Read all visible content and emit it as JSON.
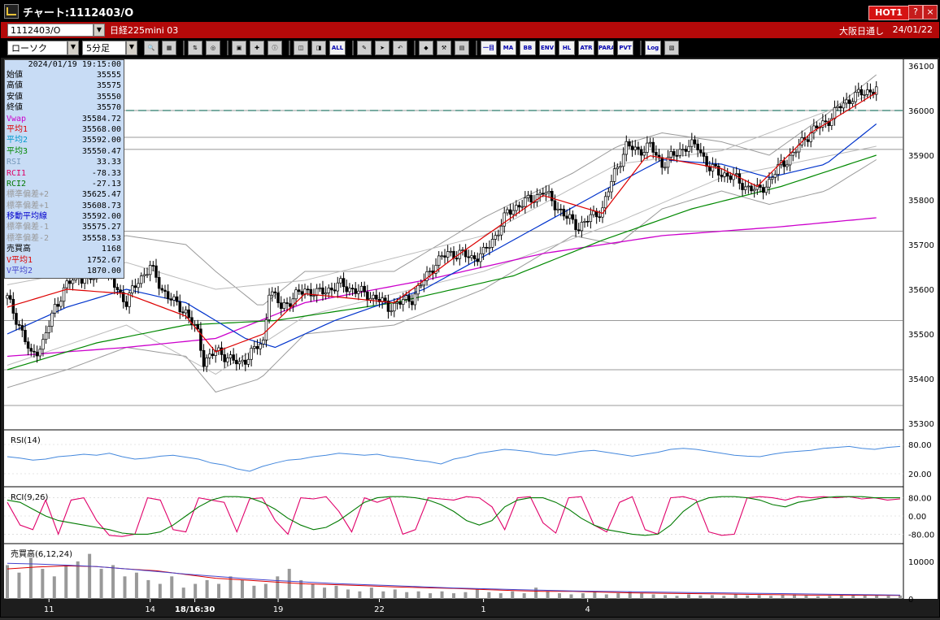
{
  "window": {
    "title": "チャート:1112403/O",
    "hot_badge": "HOT1",
    "help_button": "?",
    "close_button": "×"
  },
  "infobar": {
    "code": "1112403/O",
    "instrument": "日経225mini 03",
    "session": "大阪日通し",
    "date": "24/01/22"
  },
  "toolbar": {
    "chart_type": "ローソク",
    "interval": "5分足",
    "icons": [
      "zoom-icon",
      "grid-icon",
      "buy-sell-icon",
      "search-chart-icon",
      "chart-settings-icon",
      "order-icon",
      "info-icon",
      "single-icon",
      "dual-icon"
    ],
    "text_buttons": [
      "ALL"
    ],
    "icons2": [
      "pen-icon",
      "cursor-icon",
      "undo-icon",
      "palette-icon",
      "tool-icon",
      "color-icon"
    ],
    "indicator_buttons": [
      "一目",
      "MA",
      "BB",
      "ENV",
      "HL",
      "ATR",
      "PARA",
      "PVT",
      "Log"
    ],
    "last_icon": "layout-icon"
  },
  "info_panel": {
    "timestamp": "2024/01/19  19:15:00",
    "rows": [
      {
        "label": "始値",
        "value": "35555",
        "color": "#000000"
      },
      {
        "label": "高値",
        "value": "35575",
        "color": "#000000"
      },
      {
        "label": "安値",
        "value": "35550",
        "color": "#000000"
      },
      {
        "label": "終値",
        "value": "35570",
        "color": "#000000"
      },
      {
        "label": "Vwap",
        "value": "35584.72",
        "color": "#cc00cc"
      },
      {
        "label": "平均1",
        "value": "35568.00",
        "color": "#dd0000"
      },
      {
        "label": "平均2",
        "value": "35592.00",
        "color": "#0099cc"
      },
      {
        "label": "平均3",
        "value": "35550.47",
        "color": "#008800"
      },
      {
        "label": "RSI",
        "value": "33.33",
        "color": "#7799bb"
      },
      {
        "label": "RCI1",
        "value": "-78.33",
        "color": "#dd0066"
      },
      {
        "label": "RCI2",
        "value": "-27.13",
        "color": "#007700"
      },
      {
        "label": "標準偏差+2",
        "value": "35625.47",
        "color": "#999999"
      },
      {
        "label": "標準偏差+1",
        "value": "35608.73",
        "color": "#999999"
      },
      {
        "label": "移動平均線",
        "value": "35592.00",
        "color": "#0000cc"
      },
      {
        "label": "標準偏差-1",
        "value": "35575.27",
        "color": "#999999"
      },
      {
        "label": "標準偏差-2",
        "value": "35558.53",
        "color": "#999999"
      },
      {
        "label": "売買高",
        "value": "1168",
        "color": "#000000"
      },
      {
        "label": "V平均1",
        "value": "1752.67",
        "color": "#dd0000"
      },
      {
        "label": "V平均2",
        "value": "1870.00",
        "color": "#4444cc"
      }
    ]
  },
  "chart_data": [
    {
      "type": "candlestick",
      "panel": "price",
      "ylim": [
        35300,
        36100
      ],
      "yticks": [
        35300,
        35400,
        35500,
        35600,
        35700,
        35800,
        35900,
        36000,
        36100
      ],
      "anchors": [
        [
          0,
          35580
        ],
        [
          4,
          35520
        ],
        [
          8,
          35450
        ],
        [
          12,
          35480
        ],
        [
          16,
          35560
        ],
        [
          20,
          35610
        ],
        [
          24,
          35630
        ],
        [
          28,
          35620
        ],
        [
          32,
          35650
        ],
        [
          36,
          35610
        ],
        [
          40,
          35570
        ],
        [
          44,
          35620
        ],
        [
          48,
          35650
        ],
        [
          52,
          35600
        ],
        [
          56,
          35570
        ],
        [
          60,
          35550
        ],
        [
          64,
          35500
        ],
        [
          66,
          35440
        ],
        [
          70,
          35460
        ],
        [
          74,
          35450
        ],
        [
          78,
          35430
        ],
        [
          82,
          35460
        ],
        [
          86,
          35480
        ],
        [
          88,
          35600
        ],
        [
          92,
          35560
        ],
        [
          96,
          35580
        ],
        [
          100,
          35600
        ],
        [
          104,
          35590
        ],
        [
          108,
          35600
        ],
        [
          112,
          35610
        ],
        [
          116,
          35600
        ],
        [
          120,
          35590
        ],
        [
          124,
          35580
        ],
        [
          128,
          35560
        ],
        [
          132,
          35570
        ],
        [
          136,
          35580
        ],
        [
          140,
          35620
        ],
        [
          144,
          35660
        ],
        [
          148,
          35680
        ],
        [
          152,
          35680
        ],
        [
          156,
          35670
        ],
        [
          160,
          35680
        ],
        [
          164,
          35720
        ],
        [
          168,
          35770
        ],
        [
          172,
          35790
        ],
        [
          176,
          35800
        ],
        [
          180,
          35820
        ],
        [
          184,
          35790
        ],
        [
          188,
          35760
        ],
        [
          192,
          35740
        ],
        [
          196,
          35760
        ],
        [
          200,
          35780
        ],
        [
          204,
          35860
        ],
        [
          208,
          35920
        ],
        [
          212,
          35910
        ],
        [
          216,
          35920
        ],
        [
          220,
          35880
        ],
        [
          224,
          35900
        ],
        [
          228,
          35920
        ],
        [
          232,
          35920
        ],
        [
          236,
          35870
        ],
        [
          240,
          35860
        ],
        [
          244,
          35850
        ],
        [
          248,
          35830
        ],
        [
          252,
          35820
        ],
        [
          256,
          35840
        ],
        [
          260,
          35880
        ],
        [
          264,
          35900
        ],
        [
          268,
          35940
        ],
        [
          272,
          35960
        ],
        [
          276,
          35980
        ],
        [
          280,
          36010
        ],
        [
          284,
          36030
        ],
        [
          288,
          36040
        ],
        [
          292,
          36050
        ]
      ],
      "ma1": [
        [
          0,
          35560
        ],
        [
          20,
          35600
        ],
        [
          40,
          35590
        ],
        [
          60,
          35540
        ],
        [
          70,
          35460
        ],
        [
          86,
          35500
        ],
        [
          100,
          35590
        ],
        [
          130,
          35570
        ],
        [
          150,
          35670
        ],
        [
          180,
          35810
        ],
        [
          200,
          35770
        ],
        [
          215,
          35900
        ],
        [
          240,
          35870
        ],
        [
          252,
          35830
        ],
        [
          270,
          35950
        ],
        [
          292,
          36040
        ]
      ],
      "ma2": [
        [
          0,
          35500
        ],
        [
          20,
          35560
        ],
        [
          40,
          35600
        ],
        [
          60,
          35570
        ],
        [
          80,
          35490
        ],
        [
          90,
          35470
        ],
        [
          110,
          35530
        ],
        [
          140,
          35600
        ],
        [
          170,
          35710
        ],
        [
          200,
          35820
        ],
        [
          220,
          35890
        ],
        [
          240,
          35880
        ],
        [
          256,
          35850
        ],
        [
          275,
          35880
        ],
        [
          292,
          35970
        ]
      ],
      "ma3": [
        [
          0,
          35420
        ],
        [
          30,
          35480
        ],
        [
          60,
          35520
        ],
        [
          90,
          35530
        ],
        [
          130,
          35570
        ],
        [
          170,
          35630
        ],
        [
          200,
          35710
        ],
        [
          230,
          35780
        ],
        [
          260,
          35830
        ],
        [
          292,
          35900
        ]
      ],
      "vwap": [
        [
          0,
          35450
        ],
        [
          40,
          35470
        ],
        [
          70,
          35490
        ],
        [
          100,
          35570
        ],
        [
          140,
          35620
        ],
        [
          180,
          35680
        ],
        [
          220,
          35720
        ],
        [
          260,
          35740
        ],
        [
          292,
          35760
        ]
      ],
      "bb_upper": [
        [
          0,
          35650
        ],
        [
          20,
          35700
        ],
        [
          40,
          35720
        ],
        [
          60,
          35700
        ],
        [
          70,
          35640
        ],
        [
          85,
          35560
        ],
        [
          100,
          35640
        ],
        [
          130,
          35640
        ],
        [
          160,
          35760
        ],
        [
          190,
          35860
        ],
        [
          205,
          35920
        ],
        [
          220,
          35950
        ],
        [
          240,
          35930
        ],
        [
          256,
          35900
        ],
        [
          275,
          35990
        ],
        [
          292,
          36080
        ]
      ],
      "bb_lower": [
        [
          0,
          35380
        ],
        [
          20,
          35420
        ],
        [
          40,
          35470
        ],
        [
          60,
          35450
        ],
        [
          70,
          35370
        ],
        [
          85,
          35400
        ],
        [
          100,
          35500
        ],
        [
          130,
          35520
        ],
        [
          160,
          35600
        ],
        [
          190,
          35720
        ],
        [
          205,
          35700
        ],
        [
          220,
          35780
        ],
        [
          240,
          35820
        ],
        [
          256,
          35790
        ],
        [
          275,
          35820
        ],
        [
          292,
          35890
        ]
      ],
      "bb_upper1": [
        [
          0,
          35610
        ],
        [
          40,
          35660
        ],
        [
          70,
          35600
        ],
        [
          100,
          35620
        ],
        [
          160,
          35720
        ],
        [
          205,
          35880
        ],
        [
          240,
          35910
        ],
        [
          292,
          36040
        ]
      ],
      "bb_lower1": [
        [
          0,
          35430
        ],
        [
          40,
          35520
        ],
        [
          70,
          35410
        ],
        [
          100,
          35540
        ],
        [
          160,
          35640
        ],
        [
          205,
          35750
        ],
        [
          240,
          35850
        ],
        [
          292,
          35920
        ]
      ],
      "hlines": [
        36000,
        35940,
        35913,
        35730,
        35530,
        35420,
        35340
      ],
      "dashed_line": 36000
    },
    {
      "type": "line",
      "panel": "rsi",
      "title": "RSI(14)",
      "ylim": [
        0,
        100
      ],
      "yticks": [
        80,
        20
      ],
      "tick_labels": [
        "80.00",
        "20.00"
      ],
      "values": [
        55,
        52,
        48,
        50,
        55,
        57,
        60,
        58,
        62,
        55,
        50,
        52,
        56,
        58,
        54,
        50,
        42,
        38,
        30,
        25,
        35,
        42,
        48,
        50,
        55,
        58,
        62,
        60,
        58,
        60,
        55,
        52,
        48,
        45,
        40,
        50,
        55,
        62,
        66,
        70,
        68,
        65,
        60,
        58,
        62,
        66,
        68,
        64,
        60,
        56,
        60,
        64,
        70,
        72,
        70,
        66,
        62,
        58,
        56,
        55,
        60,
        64,
        66,
        68,
        72,
        74,
        76,
        72,
        70,
        74,
        76
      ]
    },
    {
      "type": "line",
      "panel": "rci",
      "title": "RCI(9,26)",
      "ylim": [
        -100,
        100
      ],
      "yticks": [
        80,
        0,
        -80
      ],
      "tick_labels": [
        "80.00",
        "0.00",
        "-80.00"
      ],
      "rci1": [
        60,
        -40,
        -60,
        70,
        -80,
        70,
        80,
        -20,
        -85,
        -90,
        -80,
        80,
        70,
        -60,
        -70,
        80,
        70,
        60,
        -70,
        75,
        80,
        -20,
        -80,
        80,
        75,
        85,
        20,
        -70,
        80,
        60,
        80,
        -80,
        -60,
        80,
        75,
        70,
        85,
        80,
        40,
        -60,
        80,
        85,
        -30,
        -75,
        80,
        85,
        -40,
        -70,
        60,
        85,
        -60,
        -80,
        80,
        85,
        70,
        -70,
        -85,
        -80,
        80,
        85,
        80,
        70,
        85,
        80,
        85,
        80,
        85,
        75,
        80,
        70,
        75
      ],
      "rci2": [
        70,
        60,
        30,
        0,
        -20,
        -30,
        -40,
        -50,
        -60,
        -75,
        -80,
        -80,
        -70,
        -40,
        0,
        40,
        70,
        85,
        85,
        80,
        60,
        30,
        -10,
        -40,
        -60,
        -50,
        -20,
        20,
        60,
        80,
        85,
        85,
        80,
        70,
        50,
        20,
        -20,
        -40,
        -20,
        40,
        70,
        80,
        80,
        60,
        30,
        -10,
        -40,
        -60,
        -70,
        -80,
        -85,
        -80,
        -40,
        20,
        60,
        80,
        85,
        85,
        80,
        70,
        50,
        40,
        60,
        70,
        80,
        85,
        85,
        85,
        80,
        80,
        80
      ]
    },
    {
      "type": "bar",
      "panel": "volume",
      "title": "売買高(6,12,24)",
      "ylim": [
        0,
        13000
      ],
      "yticks": [
        10000,
        0
      ],
      "tick_labels": [
        "10000",
        "0"
      ],
      "values": [
        9000,
        7000,
        11000,
        8000,
        6000,
        9000,
        10000,
        12000,
        8000,
        9000,
        6000,
        7000,
        5000,
        4000,
        6000,
        3000,
        4000,
        5000,
        4000,
        6000,
        5000,
        3500,
        4000,
        6000,
        8000,
        5000,
        4000,
        3000,
        3500,
        2500,
        2000,
        3000,
        2000,
        2500,
        1800,
        2000,
        1500,
        2000,
        1500,
        1800,
        2500,
        1800,
        1500,
        2000,
        1500,
        3000,
        2000,
        1500,
        1200,
        1500,
        1800,
        1200,
        1500,
        2000,
        1500,
        1200,
        1000,
        800,
        1200,
        900,
        1000,
        800,
        1200,
        900,
        1000,
        800,
        1000,
        1200,
        900,
        700,
        800,
        900,
        1100,
        1000,
        900,
        800,
        900
      ],
      "vma1": [
        8000,
        8500,
        8800,
        8600,
        8000,
        7500,
        6500,
        5500,
        5000,
        4500,
        4000,
        3800,
        3500,
        3200,
        3000,
        2800,
        2500,
        2200,
        2000,
        2000,
        1800,
        1600,
        1500,
        1400,
        1300,
        1200,
        1100,
        1000,
        1000,
        950,
        900
      ],
      "vma2": [
        9500,
        9300,
        9000,
        8600,
        8000,
        7300,
        6600,
        6000,
        5400,
        4900,
        4500,
        4100,
        3800,
        3500,
        3200,
        2900,
        2700,
        2500,
        2300,
        2100,
        2000,
        1900,
        1800,
        1700,
        1600,
        1500,
        1400,
        1300,
        1200,
        1100,
        1000
      ]
    },
    {
      "type": "axis",
      "panel": "time",
      "tick_labels": [
        "11",
        "14",
        "18/16:30",
        "19",
        "22",
        "1",
        "4"
      ],
      "tick_index": [
        14,
        48,
        63,
        91,
        125,
        160,
        195
      ]
    }
  ]
}
